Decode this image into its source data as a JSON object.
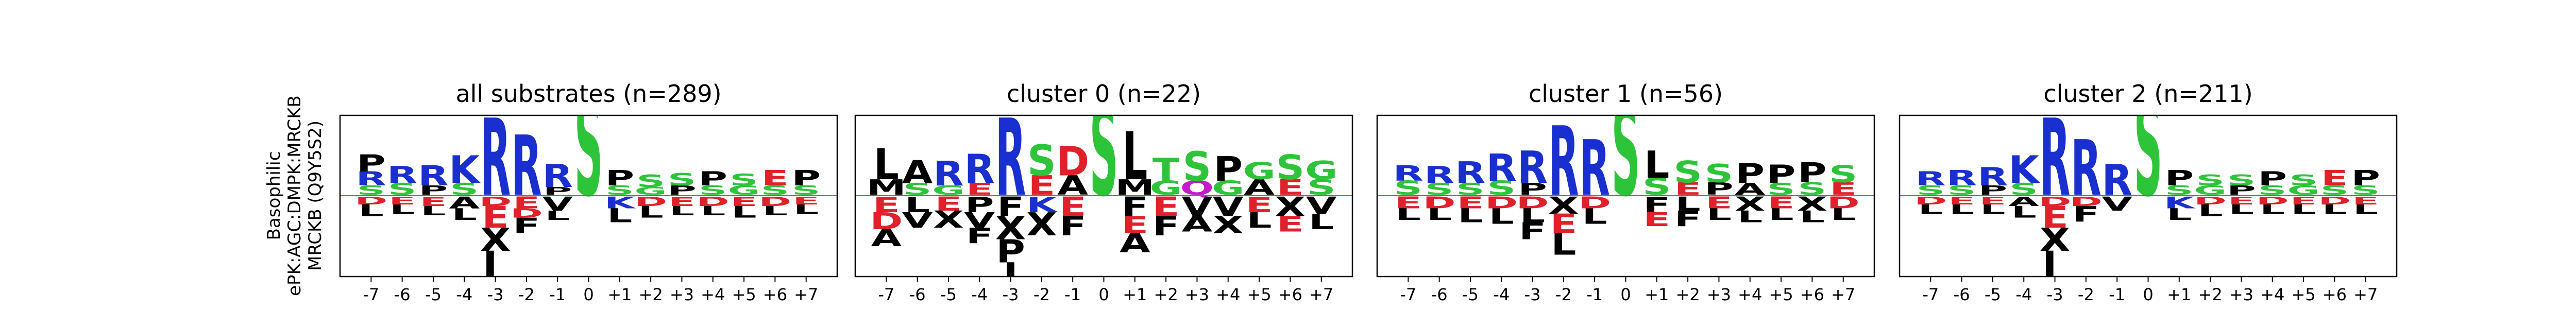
{
  "figure": {
    "ylabel_lines": [
      "Basophilic",
      "ePK:AGC:DMPK:MRCKB",
      "MRCKB (Q9Y5S2)"
    ]
  },
  "colors": {
    "basic": "#1a2fd0",
    "acidic": "#e0202a",
    "polar": "#2ec43a",
    "hydrophobic": "#000000",
    "amide": "#c21bc8",
    "baseline": "#3a9a3a"
  },
  "chart_data": [
    {
      "type": "sequence-logo",
      "title": "all substrates (n=289)",
      "positions": [
        "-7",
        "-6",
        "-5",
        "-4",
        "-3",
        "-2",
        "-1",
        "0",
        "+1",
        "+2",
        "+3",
        "+4",
        "+5",
        "+6",
        "+7"
      ],
      "up": [
        [
          [
            "S",
            0.12
          ],
          [
            "R",
            0.18
          ],
          [
            "P",
            0.22
          ]
        ],
        [
          [
            "S",
            0.15
          ],
          [
            "R",
            0.22
          ]
        ],
        [
          [
            "P",
            0.12
          ],
          [
            "R",
            0.26
          ]
        ],
        [
          [
            "S",
            0.15
          ],
          [
            "K",
            0.36
          ]
        ],
        [
          [
            "R",
            1.0
          ]
        ],
        [
          [
            "R",
            0.78
          ]
        ],
        [
          [
            "P",
            0.1
          ],
          [
            "R",
            0.3
          ]
        ],
        [
          [
            "S",
            1.3
          ]
        ],
        [
          [
            "S",
            0.12
          ],
          [
            "P",
            0.2
          ]
        ],
        [
          [
            "G",
            0.1
          ],
          [
            "S",
            0.16
          ]
        ],
        [
          [
            "P",
            0.12
          ],
          [
            "S",
            0.16
          ]
        ],
        [
          [
            "S",
            0.12
          ],
          [
            "P",
            0.18
          ]
        ],
        [
          [
            "G",
            0.12
          ],
          [
            "S",
            0.15
          ]
        ],
        [
          [
            "S",
            0.12
          ],
          [
            "E",
            0.2
          ]
        ],
        [
          [
            "S",
            0.12
          ],
          [
            "P",
            0.2
          ]
        ]
      ],
      "down": [
        [
          [
            "D",
            0.1
          ],
          [
            "L",
            0.15
          ]
        ],
        [
          [
            "E",
            0.1
          ],
          [
            "L",
            0.12
          ]
        ],
        [
          [
            "E",
            0.12
          ],
          [
            "L",
            0.12
          ]
        ],
        [
          [
            "A",
            0.15
          ],
          [
            "L",
            0.15
          ]
        ],
        [
          [
            "D",
            0.12
          ],
          [
            "E",
            0.28
          ],
          [
            "X",
            0.3
          ],
          [
            "L",
            0.55
          ]
        ],
        [
          [
            "E",
            0.15
          ],
          [
            "D",
            0.12
          ],
          [
            "F",
            0.2
          ]
        ],
        [
          [
            "V",
            0.18
          ],
          [
            "L",
            0.12
          ]
        ],
        [],
        [
          [
            "K",
            0.15
          ],
          [
            "L",
            0.18
          ]
        ],
        [
          [
            "D",
            0.12
          ],
          [
            "L",
            0.15
          ]
        ],
        [
          [
            "E",
            0.12
          ],
          [
            "L",
            0.12
          ]
        ],
        [
          [
            "D",
            0.12
          ],
          [
            "L",
            0.12
          ]
        ],
        [
          [
            "E",
            0.12
          ],
          [
            "L",
            0.15
          ]
        ],
        [
          [
            "D",
            0.12
          ],
          [
            "L",
            0.12
          ]
        ],
        [
          [
            "E",
            0.1
          ],
          [
            "L",
            0.12
          ]
        ]
      ]
    },
    {
      "type": "sequence-logo",
      "title": "cluster 0 (n=22)",
      "positions": [
        "-7",
        "-6",
        "-5",
        "-4",
        "-3",
        "-2",
        "-1",
        "0",
        "+1",
        "+2",
        "+3",
        "+4",
        "+5",
        "+6",
        "+7"
      ],
      "up": [
        [
          [
            "M",
            0.2
          ],
          [
            "L",
            0.4
          ]
        ],
        [
          [
            "S",
            0.15
          ],
          [
            "A",
            0.3
          ]
        ],
        [
          [
            "G",
            0.12
          ],
          [
            "R",
            0.32
          ]
        ],
        [
          [
            "E",
            0.15
          ],
          [
            "R",
            0.38
          ]
        ],
        [
          [
            "R",
            1.0
          ]
        ],
        [
          [
            "E",
            0.25
          ],
          [
            "S",
            0.4
          ]
        ],
        [
          [
            "A",
            0.25
          ],
          [
            "D",
            0.38
          ]
        ],
        [
          [
            "S",
            1.2
          ]
        ],
        [
          [
            "M",
            0.2
          ],
          [
            "L",
            0.62
          ]
        ],
        [
          [
            "G",
            0.18
          ],
          [
            "T",
            0.3
          ]
        ],
        [
          [
            "Q",
            0.18
          ],
          [
            "S",
            0.38
          ]
        ],
        [
          [
            "G",
            0.18
          ],
          [
            "P",
            0.32
          ]
        ],
        [
          [
            "A",
            0.2
          ],
          [
            "G",
            0.22
          ]
        ],
        [
          [
            "E",
            0.2
          ],
          [
            "S",
            0.32
          ]
        ],
        [
          [
            "S",
            0.2
          ],
          [
            "G",
            0.24
          ]
        ]
      ],
      "down": [
        [
          [
            "E",
            0.2
          ],
          [
            "D",
            0.22
          ],
          [
            "A",
            0.22
          ]
        ],
        [
          [
            "L",
            0.2
          ],
          [
            "V",
            0.2
          ]
        ],
        [
          [
            "E",
            0.18
          ],
          [
            "X",
            0.22
          ]
        ],
        [
          [
            "P",
            0.2
          ],
          [
            "V",
            0.2
          ],
          [
            "F",
            0.2
          ]
        ],
        [
          [
            "F",
            0.25
          ],
          [
            "X",
            0.3
          ],
          [
            "P",
            0.3
          ],
          [
            "I",
            0.22
          ]
        ],
        [
          [
            "K",
            0.2
          ],
          [
            "X",
            0.3
          ]
        ],
        [
          [
            "E",
            0.25
          ],
          [
            "F",
            0.25
          ]
        ],
        [],
        [
          [
            "F",
            0.25
          ],
          [
            "E",
            0.22
          ],
          [
            "A",
            0.25
          ]
        ],
        [
          [
            "E",
            0.25
          ],
          [
            "F",
            0.25
          ]
        ],
        [
          [
            "V",
            0.25
          ],
          [
            "A",
            0.2
          ]
        ],
        [
          [
            "V",
            0.25
          ],
          [
            "X",
            0.22
          ]
        ],
        [
          [
            "E",
            0.2
          ],
          [
            "L",
            0.2
          ]
        ],
        [
          [
            "X",
            0.25
          ],
          [
            "E",
            0.2
          ]
        ],
        [
          [
            "V",
            0.22
          ],
          [
            "L",
            0.2
          ]
        ]
      ]
    },
    {
      "type": "sequence-logo",
      "title": "cluster 1 (n=56)",
      "positions": [
        "-7",
        "-6",
        "-5",
        "-4",
        "-3",
        "-2",
        "-1",
        "0",
        "+1",
        "+2",
        "+3",
        "+4",
        "+5",
        "+6",
        "+7"
      ],
      "up": [
        [
          [
            "S",
            0.18
          ],
          [
            "R",
            0.2
          ]
        ],
        [
          [
            "S",
            0.15
          ],
          [
            "R",
            0.22
          ]
        ],
        [
          [
            "S",
            0.15
          ],
          [
            "R",
            0.28
          ]
        ],
        [
          [
            "S",
            0.18
          ],
          [
            "R",
            0.35
          ]
        ],
        [
          [
            "P",
            0.15
          ],
          [
            "R",
            0.42
          ]
        ],
        [
          [
            "R",
            0.9
          ]
        ],
        [
          [
            "R",
            0.72
          ]
        ],
        [
          [
            "S",
            1.2
          ]
        ],
        [
          [
            "S",
            0.22
          ],
          [
            "L",
            0.35
          ]
        ],
        [
          [
            "E",
            0.16
          ],
          [
            "S",
            0.28
          ]
        ],
        [
          [
            "P",
            0.16
          ],
          [
            "S",
            0.24
          ]
        ],
        [
          [
            "A",
            0.15
          ],
          [
            "P",
            0.26
          ]
        ],
        [
          [
            "S",
            0.15
          ],
          [
            "P",
            0.24
          ]
        ],
        [
          [
            "S",
            0.16
          ],
          [
            "P",
            0.26
          ]
        ],
        [
          [
            "E",
            0.16
          ],
          [
            "S",
            0.22
          ]
        ]
      ],
      "down": [
        [
          [
            "E",
            0.15
          ],
          [
            "L",
            0.15
          ]
        ],
        [
          [
            "D",
            0.15
          ],
          [
            "L",
            0.15
          ]
        ],
        [
          [
            "E",
            0.15
          ],
          [
            "L",
            0.18
          ]
        ],
        [
          [
            "D",
            0.15
          ],
          [
            "L",
            0.2
          ]
        ],
        [
          [
            "D",
            0.15
          ],
          [
            "L",
            0.18
          ],
          [
            "F",
            0.22
          ]
        ],
        [
          [
            "X",
            0.22
          ],
          [
            "E",
            0.25
          ],
          [
            "L",
            0.28
          ]
        ],
        [
          [
            "D",
            0.15
          ],
          [
            "L",
            0.2
          ]
        ],
        [],
        [
          [
            "F",
            0.2
          ],
          [
            "E",
            0.18
          ]
        ],
        [
          [
            "L",
            0.18
          ],
          [
            "F",
            0.2
          ]
        ],
        [
          [
            "E",
            0.15
          ],
          [
            "L",
            0.15
          ]
        ],
        [
          [
            "X",
            0.18
          ],
          [
            "L",
            0.15
          ]
        ],
        [
          [
            "E",
            0.15
          ],
          [
            "L",
            0.15
          ]
        ],
        [
          [
            "X",
            0.18
          ],
          [
            "L",
            0.15
          ]
        ],
        [
          [
            "D",
            0.15
          ],
          [
            "L",
            0.15
          ]
        ]
      ]
    },
    {
      "type": "sequence-logo",
      "title": "cluster 2 (n=211)",
      "positions": [
        "-7",
        "-6",
        "-5",
        "-4",
        "-3",
        "-2",
        "-1",
        "0",
        "+1",
        "+2",
        "+3",
        "+4",
        "+5",
        "+6",
        "+7"
      ],
      "up": [
        [
          [
            "S",
            0.12
          ],
          [
            "R",
            0.18
          ]
        ],
        [
          [
            "S",
            0.12
          ],
          [
            "R",
            0.2
          ]
        ],
        [
          [
            "P",
            0.12
          ],
          [
            "R",
            0.24
          ]
        ],
        [
          [
            "S",
            0.15
          ],
          [
            "K",
            0.36
          ]
        ],
        [
          [
            "R",
            1.0
          ]
        ],
        [
          [
            "R",
            0.72
          ]
        ],
        [
          [
            "R",
            0.4
          ]
        ],
        [
          [
            "S",
            1.3
          ]
        ],
        [
          [
            "S",
            0.12
          ],
          [
            "P",
            0.2
          ]
        ],
        [
          [
            "G",
            0.12
          ],
          [
            "S",
            0.14
          ]
        ],
        [
          [
            "P",
            0.12
          ],
          [
            "S",
            0.14
          ]
        ],
        [
          [
            "S",
            0.12
          ],
          [
            "P",
            0.18
          ]
        ],
        [
          [
            "G",
            0.12
          ],
          [
            "S",
            0.14
          ]
        ],
        [
          [
            "S",
            0.12
          ],
          [
            "E",
            0.2
          ]
        ],
        [
          [
            "S",
            0.12
          ],
          [
            "P",
            0.2
          ]
        ]
      ],
      "down": [
        [
          [
            "D",
            0.1
          ],
          [
            "L",
            0.12
          ]
        ],
        [
          [
            "E",
            0.1
          ],
          [
            "L",
            0.12
          ]
        ],
        [
          [
            "E",
            0.1
          ],
          [
            "L",
            0.12
          ]
        ],
        [
          [
            "A",
            0.12
          ],
          [
            "L",
            0.15
          ]
        ],
        [
          [
            "D",
            0.12
          ],
          [
            "E",
            0.28
          ],
          [
            "X",
            0.3
          ],
          [
            "L",
            0.55
          ]
        ],
        [
          [
            "D",
            0.12
          ],
          [
            "F",
            0.2
          ]
        ],
        [
          [
            "V",
            0.18
          ]
        ],
        [],
        [
          [
            "K",
            0.15
          ],
          [
            "L",
            0.15
          ]
        ],
        [
          [
            "D",
            0.1
          ],
          [
            "L",
            0.15
          ]
        ],
        [
          [
            "E",
            0.1
          ],
          [
            "L",
            0.12
          ]
        ],
        [
          [
            "D",
            0.1
          ],
          [
            "L",
            0.12
          ]
        ],
        [
          [
            "E",
            0.1
          ],
          [
            "L",
            0.12
          ]
        ],
        [
          [
            "D",
            0.1
          ],
          [
            "L",
            0.12
          ]
        ],
        [
          [
            "E",
            0.1
          ],
          [
            "L",
            0.12
          ]
        ]
      ]
    }
  ]
}
